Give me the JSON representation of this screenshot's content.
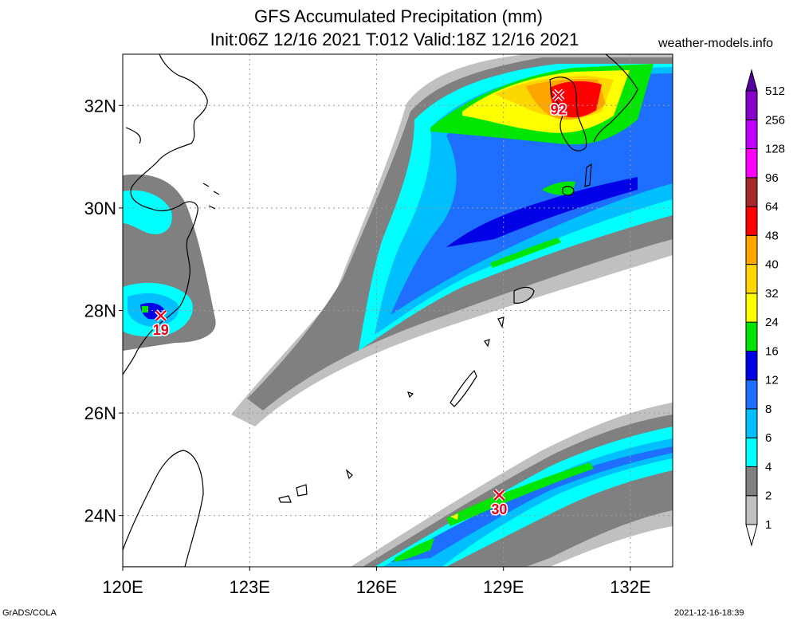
{
  "title": "GFS Accumulated Precipitation (mm)",
  "subtitle": "Init:06Z 12/16 2021 T:012 Valid:18Z 12/16 2021",
  "source_site": "weather-models.info",
  "footer_left": "GrADS/COLA",
  "footer_right": "2021-12-16-18:39",
  "map": {
    "lon_range": [
      120,
      133
    ],
    "lat_range": [
      23,
      33
    ],
    "lon_ticks": [
      {
        "value": 120,
        "label": "120E"
      },
      {
        "value": 123,
        "label": "123E"
      },
      {
        "value": 126,
        "label": "126E"
      },
      {
        "value": 129,
        "label": "129E"
      },
      {
        "value": 132,
        "label": "132E"
      }
    ],
    "lat_ticks": [
      {
        "value": 32,
        "label": "32N"
      },
      {
        "value": 30,
        "label": "30N"
      },
      {
        "value": 28,
        "label": "28N"
      },
      {
        "value": 26,
        "label": "26N"
      },
      {
        "value": 24,
        "label": "24N"
      }
    ],
    "grid": true,
    "maxima": [
      {
        "name": "max-marker-north",
        "lon": 130.3,
        "lat": 32.2,
        "label": "92"
      },
      {
        "name": "max-marker-west",
        "lon": 120.9,
        "lat": 27.9,
        "label": "19"
      },
      {
        "name": "max-marker-south",
        "lon": 128.9,
        "lat": 24.4,
        "label": "30"
      }
    ]
  },
  "legend": {
    "levels": [
      "1",
      "2",
      "4",
      "6",
      "8",
      "12",
      "16",
      "24",
      "32",
      "40",
      "48",
      "64",
      "96",
      "128",
      "256",
      "512"
    ],
    "colors": [
      "#ffffff",
      "#c0c0c0",
      "#808080",
      "#00ffff",
      "#00bfff",
      "#1e6eff",
      "#0000e6",
      "#00e600",
      "#ffff00",
      "#ffd700",
      "#ffa500",
      "#ff0000",
      "#a52a2a",
      "#ff00ff",
      "#bf00ff",
      "#8800cc",
      "#5500a0"
    ]
  }
}
